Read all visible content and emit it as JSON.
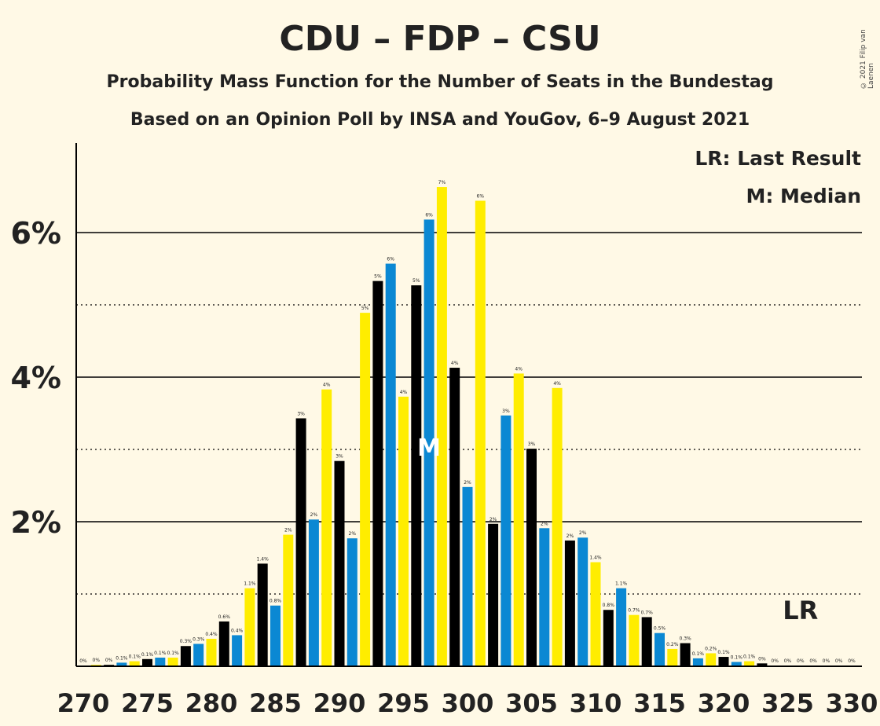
{
  "page": {
    "title": "CDU – FDP – CSU",
    "subtitle1": "Probability Mass Function for the Number of Seats in the Bundestag",
    "subtitle2": "Based on an Opinion Poll by INSA and YouGov, 6–9 August 2021",
    "copyright": "© 2021 Filip van Laenen"
  },
  "chart_data": {
    "type": "bar",
    "x": [
      270,
      271,
      272,
      273,
      274,
      275,
      276,
      277,
      278,
      279,
      280,
      281,
      282,
      283,
      284,
      285,
      286,
      287,
      288,
      289,
      290,
      291,
      292,
      293,
      294,
      295,
      296,
      297,
      298,
      299,
      300,
      301,
      302,
      303,
      304,
      305,
      306,
      307,
      308,
      309,
      310,
      311,
      312,
      313,
      314,
      315,
      316,
      317,
      318,
      319,
      320,
      321,
      322,
      323,
      324,
      325,
      326,
      327,
      328,
      329,
      330
    ],
    "values": [
      0.01,
      0.02,
      0.02,
      0.05,
      0.07,
      0.1,
      0.12,
      0.12,
      0.28,
      0.31,
      0.38,
      0.62,
      0.43,
      1.08,
      1.42,
      0.84,
      1.82,
      3.43,
      2.03,
      3.83,
      2.84,
      1.77,
      4.89,
      5.33,
      5.57,
      3.73,
      5.27,
      6.18,
      6.63,
      4.13,
      2.48,
      6.44,
      1.97,
      3.47,
      4.05,
      3.01,
      1.91,
      3.85,
      1.74,
      1.78,
      1.44,
      0.78,
      1.08,
      0.71,
      0.68,
      0.46,
      0.24,
      0.32,
      0.11,
      0.18,
      0.13,
      0.06,
      0.07,
      0.04,
      0.01,
      0.01,
      0.01,
      0.01,
      0.01,
      0.01,
      0.01
    ],
    "value_labels": [
      "0%",
      "0%",
      "0%",
      "0.1%",
      "0.1%",
      "0.1%",
      "0.1%",
      "0.1%",
      "0.3%",
      "0.3%",
      "0.4%",
      "0.6%",
      "0.4%",
      "1.1%",
      "1.4%",
      "0.8%",
      "2%",
      "3%",
      "2%",
      "4%",
      "3%",
      "2%",
      "5%",
      "5%",
      "6%",
      "4%",
      "5%",
      "6%",
      "7%",
      "4%",
      "2%",
      "6%",
      "2%",
      "3%",
      "4%",
      "3%",
      "2%",
      "4%",
      "2%",
      "2%",
      "1.4%",
      "0.8%",
      "1.1%",
      "0.7%",
      "0.7%",
      "0.5%",
      "0.2%",
      "0.3%",
      "0.1%",
      "0.2%",
      "0.1%",
      "0.1%",
      "0.1%",
      "0%",
      "0%",
      "0%",
      "0%",
      "0%",
      "0%",
      "0%",
      "0%"
    ],
    "bar_colors": [
      "#0B88D3",
      "#FFED00",
      "#000000"
    ],
    "x_ticks": [
      270,
      275,
      280,
      285,
      290,
      295,
      300,
      305,
      310,
      315,
      320,
      325,
      330
    ],
    "y_ticks": [
      2,
      4,
      6
    ],
    "y_tick_labels": [
      "2%",
      "4%",
      "6%"
    ],
    "ylim": [
      0,
      7.2
    ],
    "gridlines": {
      "solid": [
        2,
        4,
        6
      ],
      "dotted": [
        1,
        3,
        5
      ]
    },
    "median": {
      "x": 297,
      "label": "M"
    },
    "last_result": {
      "x": 326,
      "label": "LR"
    },
    "legend": {
      "position": "top-right",
      "entries": [
        "LR: Last Result",
        "M: Median"
      ]
    }
  }
}
